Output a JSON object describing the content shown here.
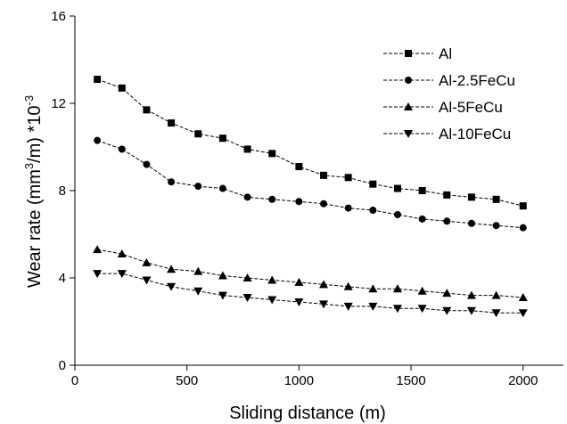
{
  "chart_data": {
    "type": "line",
    "title": "",
    "xlabel": "Sliding distance (m)",
    "ylabel": "Wear rate (mm3/m) *10-3",
    "ylabel_parts": {
      "base": "Wear rate (mm",
      "sup1": "3",
      "mid": "/m) *10",
      "sup2": "-3"
    },
    "xlim": [
      0,
      2180
    ],
    "ylim": [
      0,
      16
    ],
    "xticks": [
      0,
      500,
      1000,
      1500,
      2000
    ],
    "yticks": [
      0,
      4,
      8,
      12,
      16
    ],
    "x": [
      100,
      210,
      320,
      430,
      550,
      660,
      770,
      880,
      1000,
      1110,
      1220,
      1330,
      1440,
      1550,
      1660,
      1770,
      1880,
      2000
    ],
    "series": [
      {
        "name": "Al",
        "marker": "square",
        "values": [
          13.1,
          12.7,
          11.7,
          11.1,
          10.6,
          10.4,
          9.9,
          9.7,
          9.1,
          8.7,
          8.6,
          8.3,
          8.1,
          8.0,
          7.8,
          7.7,
          7.6,
          7.3
        ]
      },
      {
        "name": "Al-2.5FeCu",
        "marker": "circle",
        "values": [
          10.3,
          9.9,
          9.2,
          8.4,
          8.2,
          8.1,
          7.7,
          7.6,
          7.5,
          7.4,
          7.2,
          7.1,
          6.9,
          6.7,
          6.6,
          6.5,
          6.4,
          6.3
        ]
      },
      {
        "name": "Al-5FeCu",
        "marker": "triangle-up",
        "values": [
          5.3,
          5.1,
          4.7,
          4.4,
          4.3,
          4.1,
          4.0,
          3.9,
          3.8,
          3.7,
          3.6,
          3.5,
          3.5,
          3.4,
          3.3,
          3.2,
          3.2,
          3.1
        ]
      },
      {
        "name": "Al-10FeCu",
        "marker": "triangle-down",
        "values": [
          4.2,
          4.2,
          3.9,
          3.6,
          3.4,
          3.2,
          3.1,
          3.0,
          2.9,
          2.8,
          2.7,
          2.7,
          2.6,
          2.6,
          2.5,
          2.5,
          2.4,
          2.4
        ]
      }
    ],
    "legend_position": "top-right",
    "grid": false,
    "line_style": "dashed",
    "colors": {
      "line": "#000000",
      "marker": "#000000",
      "axis": "#000000"
    }
  }
}
